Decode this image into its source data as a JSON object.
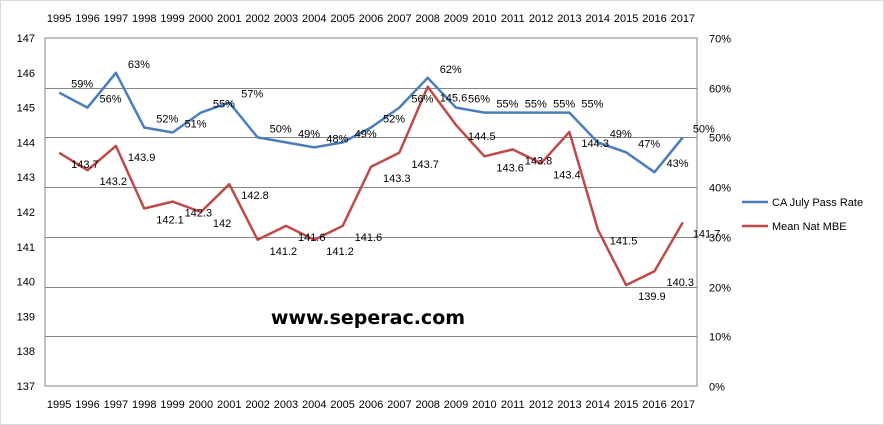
{
  "chart_data": {
    "type": "line",
    "categories": [
      "1995",
      "1996",
      "1997",
      "1998",
      "1999",
      "2000",
      "2001",
      "2002",
      "2003",
      "2004",
      "2005",
      "2006",
      "2007",
      "2008",
      "2009",
      "2010",
      "2011",
      "2012",
      "2013",
      "2014",
      "2015",
      "2016",
      "2017"
    ],
    "series": [
      {
        "name": "CA July Pass Rate",
        "axis": "right",
        "color": "#4a7ebb",
        "values": [
          59,
          56,
          63,
          52,
          51,
          55,
          57,
          50,
          49,
          48,
          49,
          52,
          56,
          62,
          56,
          55,
          55,
          55,
          55,
          49,
          47,
          43,
          50
        ],
        "labels": [
          "59%",
          "56%",
          "63%",
          "52%",
          "51%",
          "55%",
          "57%",
          "50%",
          "49%",
          "48%",
          "49%",
          "52%",
          "56%",
          "62%",
          "56%",
          "55%",
          "55%",
          "55%",
          "55%",
          "49%",
          "47%",
          "43%",
          "50%"
        ]
      },
      {
        "name": "Mean Nat MBE",
        "axis": "left",
        "color": "#be4b48",
        "values": [
          143.7,
          143.2,
          143.9,
          142.1,
          142.3,
          142.0,
          142.8,
          141.2,
          141.6,
          141.2,
          141.6,
          143.3,
          143.7,
          145.6,
          144.5,
          143.6,
          143.8,
          143.4,
          144.3,
          141.5,
          139.9,
          140.3,
          141.7
        ],
        "labels": [
          "143.7",
          "143.2",
          "143.9",
          "142.1",
          "142.3",
          "142",
          "142.8",
          "141.2",
          "141.6",
          "141.2",
          "141.6",
          "143.3",
          "143.7",
          "145.6",
          "144.5",
          "143.6",
          "143.8",
          "143.4",
          "144.3",
          "141.5",
          "139.9",
          "140.3",
          "141.7"
        ]
      }
    ],
    "y_left": {
      "range": [
        137,
        147
      ],
      "ticks": [
        "137",
        "138",
        "139",
        "140",
        "141",
        "142",
        "143",
        "144",
        "145",
        "146",
        "147"
      ]
    },
    "y_right": {
      "range": [
        0,
        70
      ],
      "ticks": [
        "0%",
        "10%",
        "20%",
        "30%",
        "40%",
        "50%",
        "60%",
        "70%"
      ]
    },
    "legend_position": "right",
    "grid": "horizontal",
    "watermark": "www.seperac.com"
  }
}
